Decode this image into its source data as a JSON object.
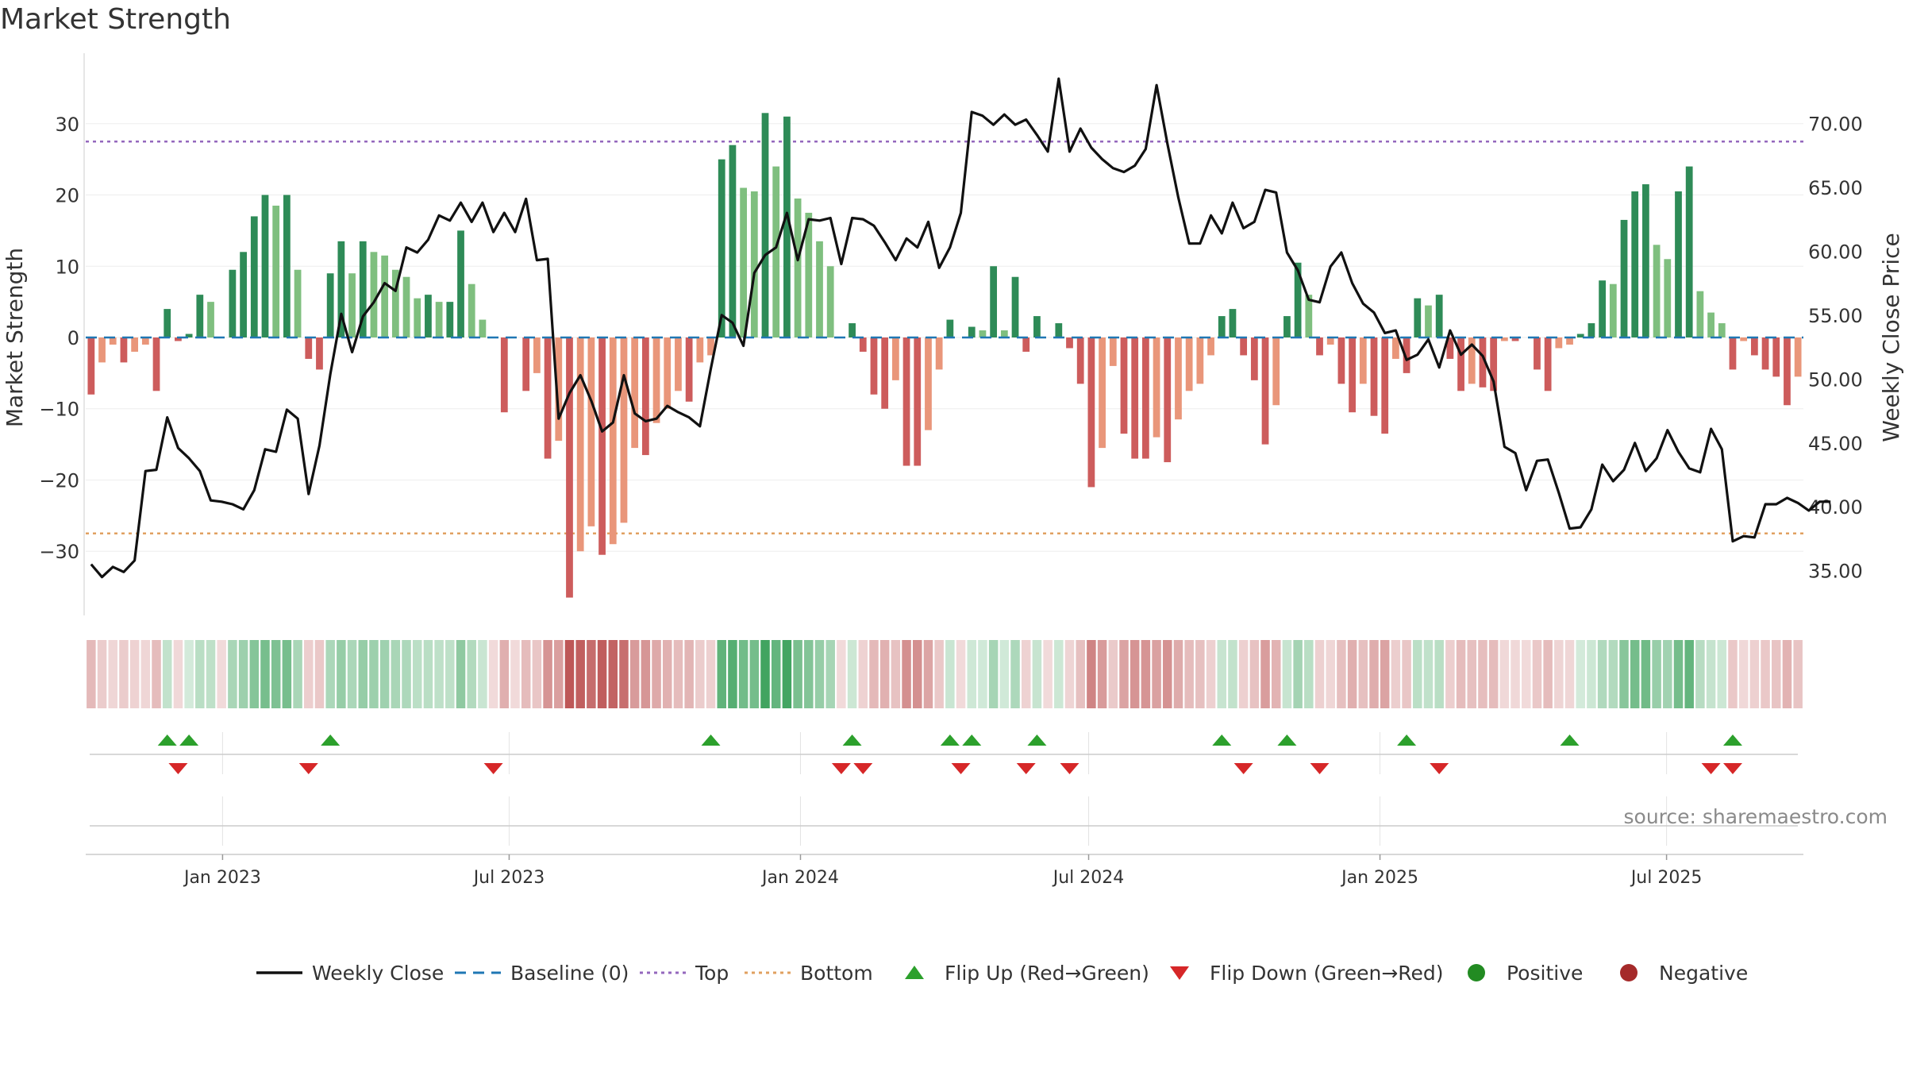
{
  "title": "Market Strength",
  "source": "source: sharemaestro.com",
  "colors": {
    "line": "#111111",
    "baseline": "#1f77b4",
    "top": "#9467bd",
    "bottom": "#e0a060",
    "pos_strong": "#2e8b57",
    "pos_light": "#7fbf7f",
    "neg_strong": "#cd5c5c",
    "neg_light": "#e9967a",
    "flip_up": "#2ca02c",
    "flip_down": "#d62728",
    "positive": "#228b22",
    "negative": "#a52a2a"
  },
  "legend": [
    {
      "label": "Weekly Close",
      "kind": "line"
    },
    {
      "label": "Baseline (0)",
      "kind": "dash"
    },
    {
      "label": "Top",
      "kind": "dot-purple"
    },
    {
      "label": "Bottom",
      "kind": "dot-orange"
    },
    {
      "label": "Flip Up (Red→Green)",
      "kind": "tri-up"
    },
    {
      "label": "Flip Down (Green→Red)",
      "kind": "tri-down"
    },
    {
      "label": "Positive",
      "kind": "dot-green"
    },
    {
      "label": "Negative",
      "kind": "dot-red"
    }
  ],
  "chart_data": {
    "type": "bar",
    "xlabel": "",
    "ylabel": "Market Strength",
    "y2label": "Weekly Close Price",
    "ylim": [
      -39,
      39
    ],
    "y2lim": [
      31.5,
      75.0
    ],
    "yticks": [
      "30",
      "20",
      "10",
      "0",
      "−10",
      "−20",
      "−30"
    ],
    "y2ticks": [
      "70.00",
      "65.00",
      "60.00",
      "55.00",
      "50.00",
      "45.00",
      "40.00",
      "35.00"
    ],
    "xticks": [
      "Jan 2023",
      "Jul 2023",
      "Jan 2024",
      "Jul 2024",
      "Jan 2025",
      "Jul 2025"
    ],
    "x_start": "2022-10-10",
    "x_end": "2025-09-22",
    "top_line": 27.5,
    "bottom_line": -27.5,
    "baseline": 0,
    "grid": true,
    "strength": [
      -8,
      -3.5,
      -1,
      -3.5,
      -2,
      -1,
      -7.5,
      4,
      -0.5,
      0.5,
      6,
      5,
      0,
      9.5,
      12,
      17,
      20,
      18.5,
      20,
      9.5,
      -3,
      -4.5,
      9,
      13.5,
      9,
      13.5,
      12,
      11.5,
      9.5,
      8.5,
      5.5,
      6,
      5,
      5,
      15,
      7.5,
      2.5,
      0,
      -10.5,
      0,
      -7.5,
      -5,
      -17,
      -14.5,
      -36.5,
      -30,
      -26.5,
      -30.5,
      -29,
      -26,
      -15.5,
      -16.5,
      -12,
      -10,
      -7.5,
      -9,
      -3.5,
      -2.5,
      25,
      27,
      21,
      20.5,
      31.5,
      24,
      31,
      19.5,
      17.5,
      13.5,
      10,
      0,
      2,
      -2,
      -8,
      -10,
      -6,
      -18,
      -18,
      -13,
      -4.5,
      2.5,
      0,
      1.5,
      1,
      10,
      1,
      8.5,
      -2,
      3,
      0,
      2,
      -1.5,
      -6.5,
      -21,
      -15.5,
      -4,
      -13.5,
      -17,
      -17,
      -14,
      -17.5,
      -11.5,
      -7.5,
      -6.5,
      -2.5,
      3,
      4,
      -2.5,
      -6,
      -15,
      -9.5,
      3,
      10.5,
      6,
      -2.5,
      -1,
      -6.5,
      -10.5,
      -6.5,
      -11,
      -13.5,
      -3,
      -5,
      5.5,
      4.5,
      6,
      -3,
      -7.5,
      -6.5,
      -7,
      -7.5,
      -0.5,
      -0.5,
      0,
      -4.5,
      -7.5,
      -1.5,
      -1,
      0.5,
      2,
      8,
      7.5,
      16.5,
      20.5,
      21.5,
      13,
      11,
      20.5,
      24,
      6.5,
      3.5,
      2,
      -4.5,
      -0.5,
      -2.5,
      -4.5,
      -5.5,
      -9.5,
      -5.5
    ],
    "weekly_close": [
      35.5,
      34.5,
      35.3,
      34.9,
      35.8,
      42.8,
      42.9,
      47.0,
      44.6,
      43.8,
      42.8,
      40.5,
      40.4,
      40.2,
      39.8,
      41.3,
      44.5,
      44.3,
      47.6,
      46.9,
      41.0,
      44.8,
      50.4,
      55.1,
      52.1,
      54.9,
      56.0,
      57.5,
      56.9,
      60.3,
      59.9,
      60.9,
      62.8,
      62.4,
      63.8,
      62.3,
      63.8,
      61.5,
      63.0,
      61.5,
      64.1,
      59.3,
      59.4,
      46.9,
      48.9,
      50.3,
      48.3,
      45.9,
      46.6,
      50.3,
      47.3,
      46.7,
      46.9,
      47.9,
      47.4,
      47.0,
      46.3,
      50.8,
      55.0,
      54.4,
      52.6,
      58.3,
      59.7,
      60.3,
      63.0,
      59.3,
      62.5,
      62.4,
      62.6,
      59.0,
      62.6,
      62.5,
      62.0,
      60.7,
      59.3,
      61.0,
      60.3,
      62.3,
      58.7,
      60.3,
      63.0,
      70.9,
      70.6,
      69.9,
      70.7,
      69.9,
      70.3,
      69.1,
      67.8,
      73.5,
      67.8,
      69.6,
      68.1,
      67.2,
      66.5,
      66.2,
      66.7,
      68.0,
      73.0,
      68.4,
      64.2,
      60.6,
      60.6,
      62.8,
      61.4,
      63.8,
      61.8,
      62.3,
      64.8,
      64.6,
      59.9,
      58.5,
      56.2,
      56.0,
      58.8,
      59.9,
      57.5,
      55.9,
      55.2,
      53.6,
      53.8,
      51.5,
      51.9,
      53.1,
      50.9,
      53.8,
      51.9,
      52.7,
      51.8,
      49.8,
      44.7,
      44.2,
      41.3,
      43.6,
      43.7,
      41.1,
      38.3,
      38.4,
      39.8,
      43.3,
      42.0,
      42.9,
      45.0,
      42.8,
      43.8,
      46.0,
      44.3,
      43.0,
      42.7,
      46.1,
      44.5,
      37.3,
      37.7,
      37.6,
      40.2,
      40.2,
      40.7,
      40.3,
      39.7,
      40.4,
      40.4
    ],
    "flip_up_idx": [
      7,
      9,
      22,
      57,
      70,
      79,
      81,
      87,
      104,
      110,
      121,
      136,
      151
    ],
    "flip_down_idx": [
      8,
      20,
      37,
      69,
      71,
      80,
      86,
      90,
      106,
      113,
      124,
      149,
      151
    ]
  }
}
